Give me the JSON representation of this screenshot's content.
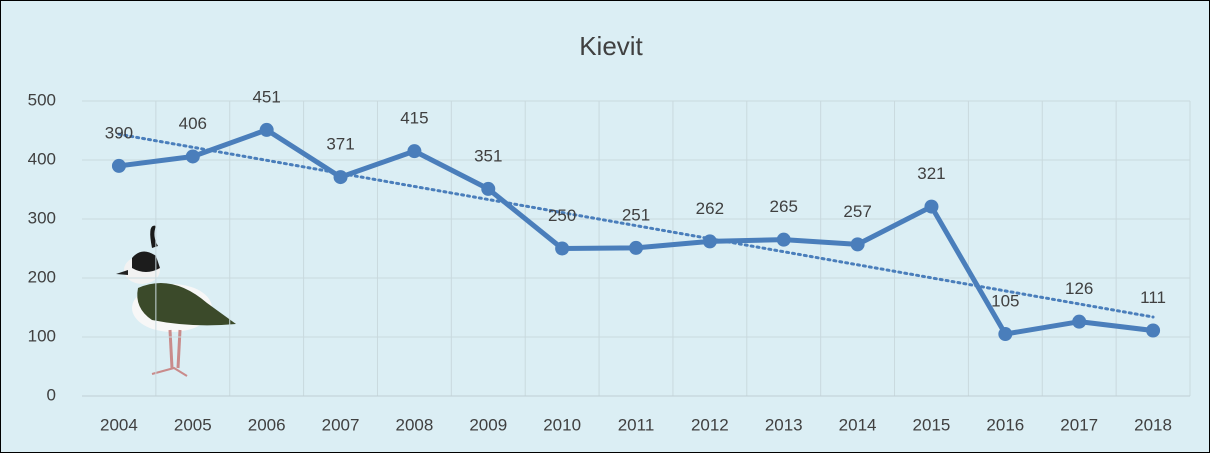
{
  "chart_data": {
    "type": "line",
    "title": "Kievit",
    "categories": [
      "2004",
      "2005",
      "2006",
      "2007",
      "2008",
      "2009",
      "2010",
      "2011",
      "2012",
      "2013",
      "2014",
      "2015",
      "2016",
      "2017",
      "2018"
    ],
    "values": [
      390,
      406,
      451,
      371,
      415,
      351,
      250,
      251,
      262,
      265,
      257,
      321,
      105,
      126,
      111
    ],
    "color": "#4a7ebb",
    "trendline": true,
    "trend_color": "#4a7ebb",
    "ylim": [
      0,
      500
    ],
    "yticks": [
      0,
      100,
      200,
      300,
      400,
      500
    ],
    "grid": true
  }
}
